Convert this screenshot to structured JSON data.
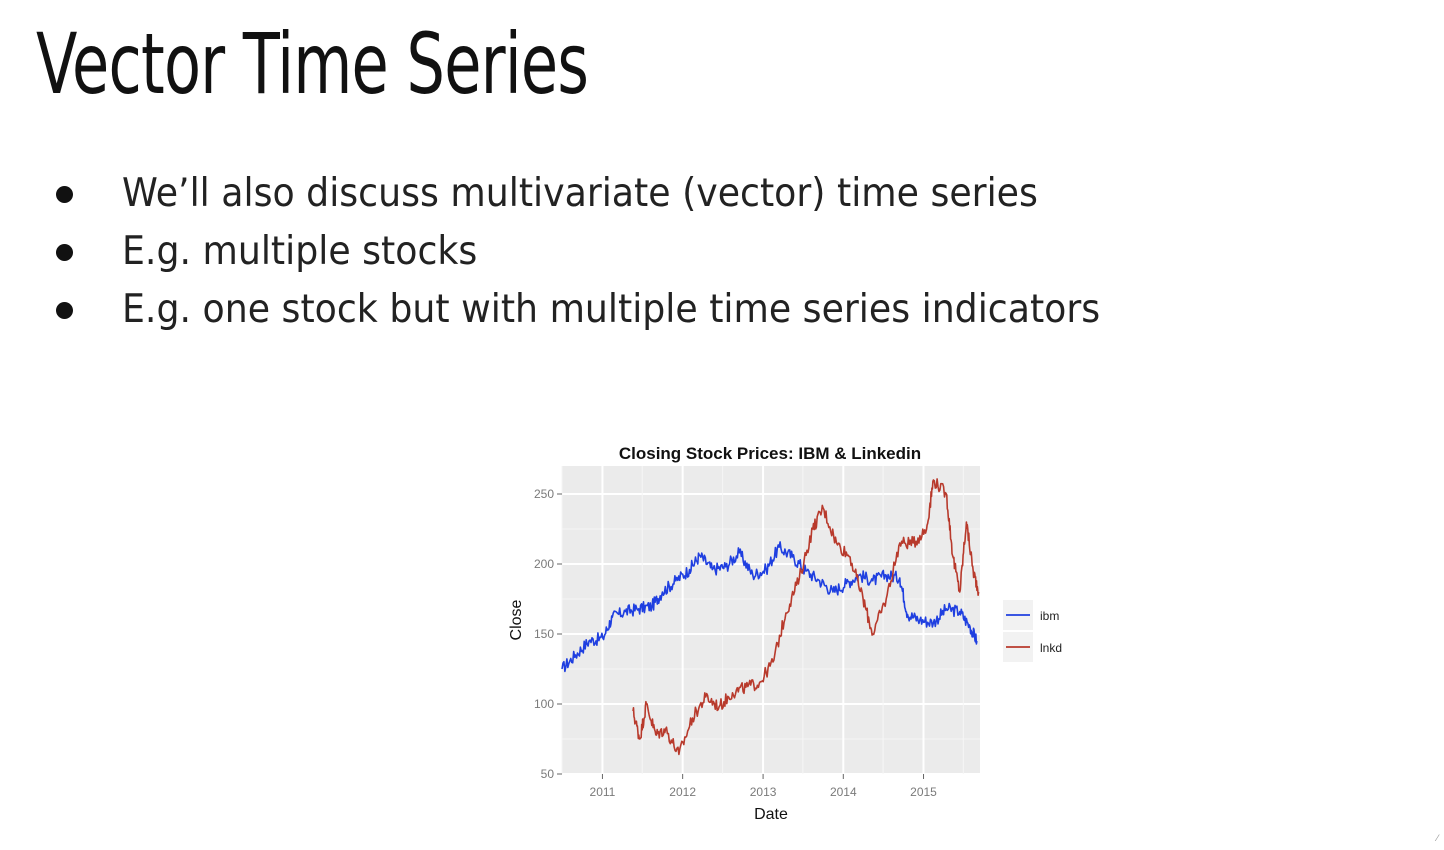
{
  "slide": {
    "title": "Vector Time Series",
    "bullets": [
      "We’ll also discuss multivariate (vector) time series",
      "E.g. multiple stocks",
      "E.g. one stock but with multiple time series indicators"
    ]
  },
  "chart_data": {
    "type": "line",
    "title": "Closing Stock Prices: IBM & Linkedin",
    "xlabel": "Date",
    "ylabel": "Close",
    "xlim": [
      "2010-07-01",
      "2015-09-15"
    ],
    "ylim": [
      50,
      270
    ],
    "xticks": [
      "2011",
      "2012",
      "2013",
      "2014",
      "2015"
    ],
    "yticks": [
      50,
      100,
      150,
      200,
      250
    ],
    "grid": true,
    "legend": "right",
    "series": [
      {
        "name": "ibm",
        "color": "#1f3fe0",
        "points": [
          [
            "2010-07-01",
            125
          ],
          [
            "2010-09-01",
            135
          ],
          [
            "2010-11-01",
            145
          ],
          [
            "2011-01-03",
            147
          ],
          [
            "2011-02-15",
            162
          ],
          [
            "2011-04-15",
            166
          ],
          [
            "2011-06-15",
            168
          ],
          [
            "2011-08-15",
            170
          ],
          [
            "2011-10-01",
            180
          ],
          [
            "2011-12-01",
            188
          ],
          [
            "2012-02-01",
            196
          ],
          [
            "2012-03-20",
            206
          ],
          [
            "2012-05-15",
            196
          ],
          [
            "2012-07-15",
            198
          ],
          [
            "2012-09-15",
            208
          ],
          [
            "2012-11-15",
            192
          ],
          [
            "2013-01-15",
            196
          ],
          [
            "2013-03-15",
            212
          ],
          [
            "2013-05-15",
            205
          ],
          [
            "2013-07-15",
            195
          ],
          [
            "2013-09-15",
            188
          ],
          [
            "2013-11-15",
            180
          ],
          [
            "2014-01-15",
            186
          ],
          [
            "2014-03-15",
            192
          ],
          [
            "2014-05-15",
            188
          ],
          [
            "2014-07-15",
            192
          ],
          [
            "2014-09-15",
            190
          ],
          [
            "2014-10-20",
            164
          ],
          [
            "2014-12-15",
            160
          ],
          [
            "2015-02-15",
            158
          ],
          [
            "2015-04-15",
            168
          ],
          [
            "2015-06-15",
            166
          ],
          [
            "2015-08-01",
            155
          ],
          [
            "2015-09-01",
            145
          ]
        ]
      },
      {
        "name": "lnkd",
        "color": "#b83a2c",
        "points": [
          [
            "2011-05-20",
            95
          ],
          [
            "2011-06-20",
            75
          ],
          [
            "2011-07-20",
            100
          ],
          [
            "2011-09-01",
            78
          ],
          [
            "2011-10-15",
            82
          ],
          [
            "2011-12-15",
            64
          ],
          [
            "2012-02-15",
            90
          ],
          [
            "2012-04-15",
            105
          ],
          [
            "2012-06-15",
            98
          ],
          [
            "2012-08-15",
            108
          ],
          [
            "2012-10-15",
            112
          ],
          [
            "2012-12-15",
            115
          ],
          [
            "2013-02-15",
            130
          ],
          [
            "2013-04-15",
            165
          ],
          [
            "2013-06-15",
            190
          ],
          [
            "2013-08-15",
            225
          ],
          [
            "2013-10-01",
            240
          ],
          [
            "2013-12-01",
            215
          ],
          [
            "2014-02-01",
            205
          ],
          [
            "2014-04-01",
            175
          ],
          [
            "2014-05-15",
            150
          ],
          [
            "2014-07-15",
            175
          ],
          [
            "2014-09-15",
            215
          ],
          [
            "2014-11-15",
            215
          ],
          [
            "2015-01-15",
            225
          ],
          [
            "2015-02-15",
            260
          ],
          [
            "2015-04-15",
            250
          ],
          [
            "2015-05-15",
            205
          ],
          [
            "2015-06-15",
            180
          ],
          [
            "2015-07-15",
            230
          ],
          [
            "2015-08-15",
            195
          ],
          [
            "2015-09-10",
            180
          ]
        ]
      }
    ]
  }
}
